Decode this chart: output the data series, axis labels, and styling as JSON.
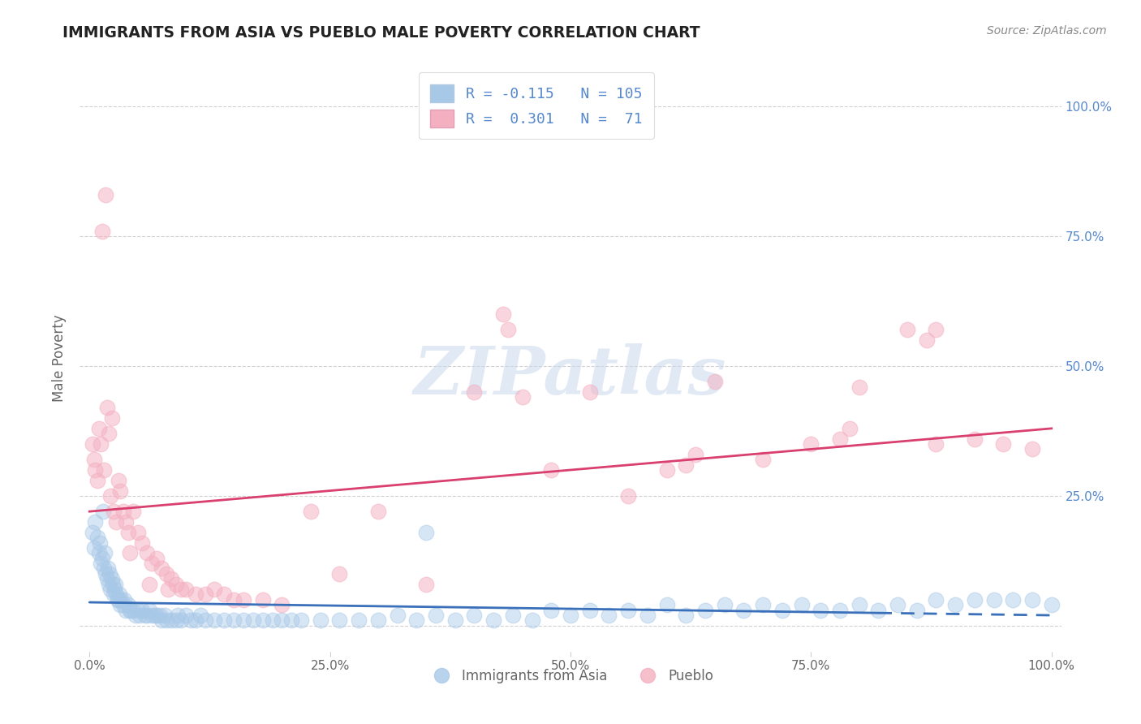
{
  "title": "IMMIGRANTS FROM ASIA VS PUEBLO MALE POVERTY CORRELATION CHART",
  "source_text": "Source: ZipAtlas.com",
  "ylabel": "Male Poverty",
  "watermark": "ZIPatlas",
  "x_tick_vals": [
    0,
    25,
    50,
    75,
    100
  ],
  "x_tick_labels": [
    "0.0%",
    "25.0%",
    "50.0%",
    "75.0%",
    "100.0%"
  ],
  "y_tick_vals": [
    0,
    25,
    50,
    75,
    100
  ],
  "y_tick_labels": [
    "",
    "25.0%",
    "50.0%",
    "75.0%",
    "100.0%"
  ],
  "xlim": [
    -1,
    101
  ],
  "ylim": [
    -5,
    108
  ],
  "blue_color": "#a8c8e8",
  "pink_color": "#f4afc0",
  "blue_line_color": "#3a6fba",
  "pink_line_color": "#d94070",
  "blue_scatter_x": [
    0.3,
    0.5,
    0.6,
    0.8,
    1.0,
    1.1,
    1.2,
    1.3,
    1.5,
    1.6,
    1.7,
    1.8,
    1.9,
    2.0,
    2.1,
    2.2,
    2.3,
    2.4,
    2.5,
    2.6,
    2.8,
    2.9,
    3.0,
    3.1,
    3.2,
    3.3,
    3.5,
    3.6,
    3.8,
    4.0,
    4.2,
    4.5,
    4.8,
    5.0,
    5.2,
    5.5,
    5.8,
    6.0,
    6.2,
    6.5,
    6.8,
    7.0,
    7.3,
    7.5,
    7.8,
    8.0,
    8.5,
    9.0,
    9.5,
    10.0,
    10.5,
    11.0,
    11.5,
    12.0,
    13.0,
    14.0,
    15.0,
    16.0,
    17.0,
    18.0,
    19.0,
    20.0,
    21.0,
    22.0,
    24.0,
    26.0,
    28.0,
    30.0,
    32.0,
    34.0,
    36.0,
    38.0,
    40.0,
    42.0,
    44.0,
    46.0,
    48.0,
    50.0,
    52.0,
    54.0,
    56.0,
    58.0,
    60.0,
    62.0,
    64.0,
    66.0,
    68.0,
    70.0,
    72.0,
    74.0,
    76.0,
    78.0,
    80.0,
    82.0,
    84.0,
    86.0,
    88.0,
    90.0,
    92.0,
    94.0,
    96.0,
    98.0,
    100.0,
    1.4,
    2.7,
    4.3,
    9.2,
    35.0
  ],
  "blue_scatter_y": [
    18,
    15,
    20,
    17,
    14,
    16,
    12,
    13,
    11,
    14,
    10,
    9,
    11,
    8,
    10,
    7,
    9,
    8,
    6,
    7,
    6,
    5,
    5,
    6,
    4,
    5,
    4,
    5,
    3,
    4,
    3,
    3,
    2,
    3,
    2,
    3,
    2,
    2,
    3,
    2,
    2,
    2,
    2,
    1,
    2,
    1,
    1,
    1,
    1,
    2,
    1,
    1,
    2,
    1,
    1,
    1,
    1,
    1,
    1,
    1,
    1,
    1,
    1,
    1,
    1,
    1,
    1,
    1,
    2,
    1,
    2,
    1,
    2,
    1,
    2,
    1,
    3,
    2,
    3,
    2,
    3,
    2,
    4,
    2,
    3,
    4,
    3,
    4,
    3,
    4,
    3,
    3,
    4,
    3,
    4,
    3,
    5,
    4,
    5,
    5,
    5,
    5,
    4,
    22,
    8,
    3,
    2,
    18
  ],
  "pink_scatter_x": [
    0.3,
    0.5,
    0.6,
    0.8,
    1.0,
    1.2,
    1.5,
    1.8,
    2.0,
    2.2,
    2.5,
    2.8,
    3.0,
    3.2,
    3.5,
    3.8,
    4.0,
    4.5,
    5.0,
    5.5,
    6.0,
    6.5,
    7.0,
    7.5,
    8.0,
    8.5,
    9.0,
    9.5,
    10.0,
    11.0,
    12.0,
    13.0,
    14.0,
    15.0,
    16.0,
    18.0,
    20.0,
    23.0,
    26.0,
    30.0,
    35.0,
    40.0,
    45.0,
    48.0,
    52.0,
    56.0,
    60.0,
    65.0,
    70.0,
    75.0,
    80.0,
    85.0,
    88.0,
    92.0,
    95.0,
    98.0,
    4.2,
    6.2,
    8.2,
    43.0,
    43.5,
    87.0,
    88.0,
    62.0,
    63.0,
    78.0,
    79.0,
    2.3,
    1.3,
    1.7
  ],
  "pink_scatter_y": [
    35,
    32,
    30,
    28,
    38,
    35,
    30,
    42,
    37,
    25,
    22,
    20,
    28,
    26,
    22,
    20,
    18,
    22,
    18,
    16,
    14,
    12,
    13,
    11,
    10,
    9,
    8,
    7,
    7,
    6,
    6,
    7,
    6,
    5,
    5,
    5,
    4,
    22,
    10,
    22,
    8,
    45,
    44,
    30,
    45,
    25,
    30,
    47,
    32,
    35,
    46,
    57,
    35,
    36,
    35,
    34,
    14,
    8,
    7,
    60,
    57,
    55,
    57,
    31,
    33,
    36,
    38,
    40,
    76,
    83
  ],
  "blue_line_x": [
    0,
    100
  ],
  "blue_line_y": [
    4.5,
    2.0
  ],
  "pink_line_x": [
    0,
    100
  ],
  "pink_line_y": [
    22,
    38
  ],
  "background_color": "#ffffff",
  "grid_color": "#cccccc",
  "title_color": "#222222",
  "axis_label_color": "#666666",
  "right_tick_color": "#5588cc",
  "source_color": "#888888"
}
